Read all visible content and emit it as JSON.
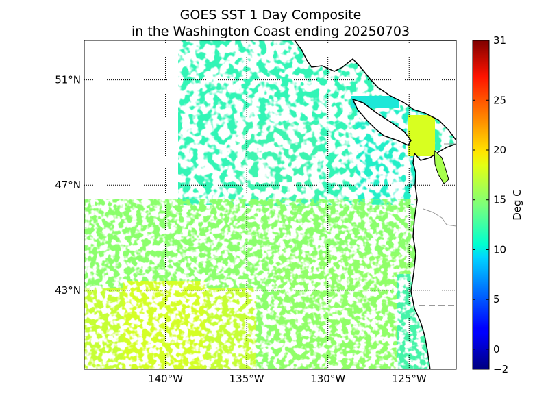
{
  "title": {
    "line1": "GOES SST 1 Day Composite",
    "line2": "in the Washington Coast ending 20250703"
  },
  "map": {
    "lat_range": [
      40.0,
      52.5
    ],
    "lon_range": [
      -145.0,
      -122.1
    ],
    "parallels": [
      {
        "value": 51,
        "label": "51°N"
      },
      {
        "value": 47,
        "label": "47°N"
      },
      {
        "value": 43,
        "label": "43°N"
      }
    ],
    "meridians": [
      {
        "value": -140,
        "label": "140°W"
      },
      {
        "value": -135,
        "label": "135°W"
      },
      {
        "value": -130,
        "label": "130°W"
      },
      {
        "value": -125,
        "label": "125°W"
      }
    ],
    "grid": true
  },
  "colorbar": {
    "label": "Deg C",
    "min": -2,
    "max": 31,
    "ticks": [
      {
        "value": 31,
        "label": "31"
      },
      {
        "value": 25,
        "label": "25"
      },
      {
        "value": 20,
        "label": "20"
      },
      {
        "value": 15,
        "label": "15"
      },
      {
        "value": 10,
        "label": "10"
      },
      {
        "value": 5,
        "label": "5"
      },
      {
        "value": 0,
        "label": "0"
      },
      {
        "value": -2,
        "label": "−2"
      }
    ],
    "colormap": "jet"
  },
  "colors": {
    "land": "#ffffff",
    "coastline": "#000000",
    "border": "#999999",
    "nodata": "#ffffff"
  }
}
